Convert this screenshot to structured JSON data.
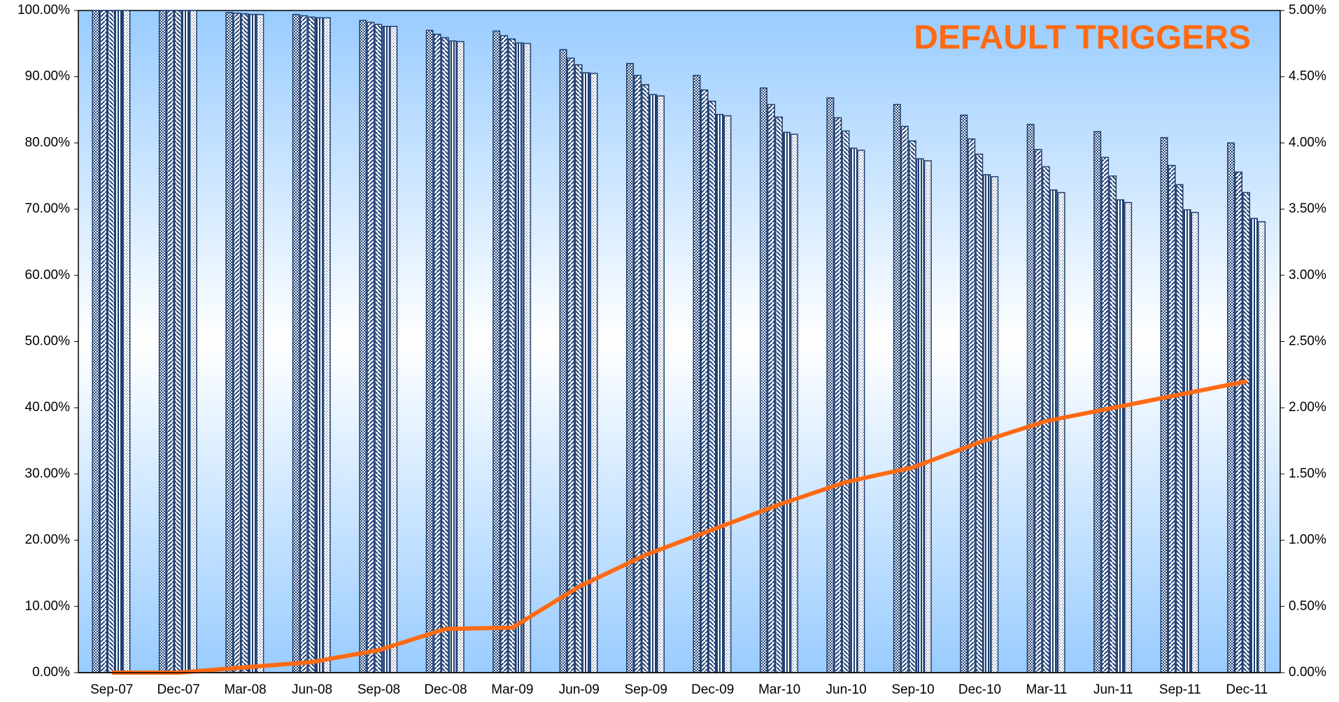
{
  "chart_data": {
    "type": "bar",
    "title": "DEFAULT TRIGGERS",
    "categories": [
      "Sep-07",
      "Dec-07",
      "Mar-08",
      "Jun-08",
      "Sep-08",
      "Dec-08",
      "Mar-09",
      "Jun-09",
      "Sep-09",
      "Dec-09",
      "Mar-10",
      "Jun-10",
      "Sep-10",
      "Dec-10",
      "Mar-11",
      "Jun-11",
      "Sep-11",
      "Dec-11"
    ],
    "series": [
      {
        "color": "#1f3f73",
        "values": [
          100,
          100,
          99.7,
          99.4,
          98.5,
          97.0,
          96.9,
          94.1,
          92.0,
          90.2,
          88.3,
          86.8,
          85.8,
          84.2,
          82.8,
          81.7,
          80.8,
          80.0
        ]
      },
      {
        "color": "#1f3f73",
        "values": [
          100,
          100,
          99.6,
          99.2,
          98.2,
          96.4,
          96.2,
          92.8,
          90.2,
          88.0,
          85.8,
          83.8,
          82.5,
          80.6,
          79.0,
          77.8,
          76.6,
          75.6
        ]
      },
      {
        "color": "#1f3f73",
        "values": [
          100,
          100,
          99.5,
          99.0,
          97.9,
          95.9,
          95.7,
          91.8,
          88.8,
          86.3,
          83.9,
          81.8,
          80.3,
          78.3,
          76.4,
          75.0,
          73.7,
          72.5
        ]
      },
      {
        "color": "#1f3f73",
        "values": [
          100,
          100,
          99.4,
          98.9,
          97.6,
          95.4,
          95.1,
          90.6,
          87.3,
          84.3,
          81.6,
          79.2,
          77.6,
          75.2,
          72.9,
          71.4,
          69.9,
          68.6
        ]
      },
      {
        "color": "#1f3f73",
        "values": [
          100,
          100,
          99.4,
          98.9,
          97.6,
          95.3,
          95.0,
          90.5,
          87.1,
          84.1,
          81.3,
          78.9,
          77.3,
          74.9,
          72.5,
          71.0,
          69.5,
          68.1
        ]
      },
      {
        "type": "line",
        "axis": "y2",
        "color": "#ff6a13",
        "values": [
          0,
          0,
          0.04,
          0.08,
          0.17,
          0.33,
          0.34,
          0.65,
          0.89,
          1.08,
          1.27,
          1.44,
          1.55,
          1.74,
          1.9,
          2.0,
          2.1,
          2.2
        ]
      }
    ],
    "ylim": [
      0,
      100
    ],
    "yticks": [
      {
        "value": 0,
        "label": "0.00%"
      },
      {
        "value": 10,
        "label": "10.00%"
      },
      {
        "value": 20,
        "label": "20.00%"
      },
      {
        "value": 30,
        "label": "30.00%"
      },
      {
        "value": 40,
        "label": "40.00%"
      },
      {
        "value": 50,
        "label": "50.00%"
      },
      {
        "value": 60,
        "label": "60.00%"
      },
      {
        "value": 70,
        "label": "70.00%"
      },
      {
        "value": 80,
        "label": "80.00%"
      },
      {
        "value": 90,
        "label": "90.00%"
      },
      {
        "value": 100,
        "label": "100.00%"
      }
    ],
    "y2lim": [
      0,
      5
    ],
    "y2ticks": [
      {
        "value": 0,
        "label": "0.00%"
      },
      {
        "value": 0.5,
        "label": "0.50%"
      },
      {
        "value": 1,
        "label": "1.00%"
      },
      {
        "value": 1.5,
        "label": "1.50%"
      },
      {
        "value": 2,
        "label": "2.00%"
      },
      {
        "value": 2.5,
        "label": "2.50%"
      },
      {
        "value": 3,
        "label": "3.00%"
      },
      {
        "value": 3.5,
        "label": "3.50%"
      },
      {
        "value": 4,
        "label": "4.00%"
      },
      {
        "value": 4.5,
        "label": "4.50%"
      },
      {
        "value": 5,
        "label": "5.00%"
      }
    ]
  }
}
